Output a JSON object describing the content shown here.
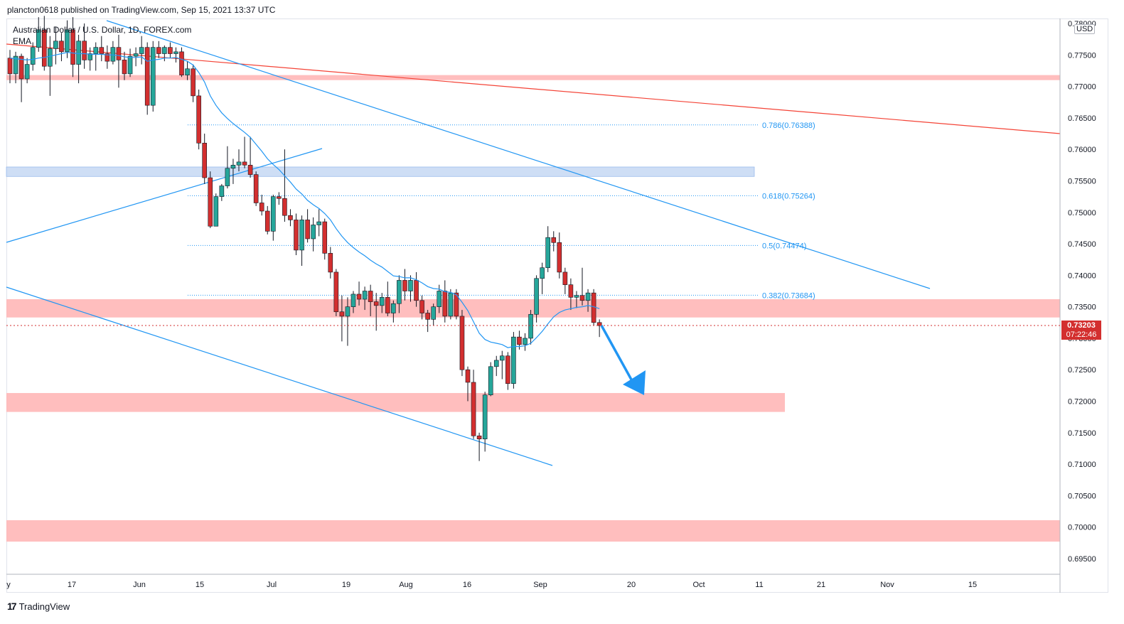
{
  "header": {
    "published": "plancton0618 published on TradingView.com, Sep 15, 2021 13:37 UTC"
  },
  "legend": {
    "symbol": "Australian Dollar / U.S. Dollar, 1D, FOREX.com",
    "indicator": "EMA"
  },
  "currency_badge": "USD",
  "last_price": {
    "price": "0.73203",
    "countdown": "07:22:46"
  },
  "footer": {
    "logo_mark": "17",
    "brand": "TradingView"
  },
  "colors": {
    "up": "#26a69a",
    "down": "#d32f2f",
    "candle_border": "#131722",
    "ema": "#2196f3",
    "trendline_blue": "#2196f3",
    "trendline_red": "#f44336",
    "zone_red": "#ffb3b3",
    "zone_blue": "#c9dbf5",
    "fib": "#2196f3",
    "arrow": "#2196f3"
  },
  "chart_data": {
    "type": "candlestick",
    "y_axis": {
      "range": [
        0.6935,
        0.7805
      ],
      "ticks": [
        "0.78000",
        "0.77500",
        "0.77000",
        "0.76500",
        "0.76000",
        "0.75500",
        "0.75000",
        "0.74500",
        "0.74000",
        "0.73500",
        "0.73000",
        "0.72500",
        "0.72000",
        "0.71500",
        "0.71000",
        "0.70500",
        "0.70000",
        "0.69500"
      ]
    },
    "x_axis": {
      "ticks": [
        "y",
        "17",
        "Jun",
        "15",
        "Jul",
        "19",
        "Aug",
        "16",
        "Sep",
        "20",
        "Oct",
        "11",
        "21",
        "Nov",
        "15"
      ]
    },
    "candles": [
      [
        0.7745,
        0.7758,
        0.7705,
        0.772
      ],
      [
        0.772,
        0.7755,
        0.7705,
        0.7748
      ],
      [
        0.7748,
        0.7752,
        0.7675,
        0.7712
      ],
      [
        0.7712,
        0.7745,
        0.7705,
        0.7735
      ],
      [
        0.7735,
        0.777,
        0.7725,
        0.7762
      ],
      [
        0.7762,
        0.781,
        0.7755,
        0.779
      ],
      [
        0.779,
        0.7812,
        0.7725,
        0.7732
      ],
      [
        0.7732,
        0.778,
        0.7685,
        0.776
      ],
      [
        0.776,
        0.7795,
        0.7735,
        0.7772
      ],
      [
        0.7772,
        0.7785,
        0.774,
        0.7755
      ],
      [
        0.7755,
        0.7805,
        0.7745,
        0.779
      ],
      [
        0.779,
        0.781,
        0.7715,
        0.7735
      ],
      [
        0.7735,
        0.7782,
        0.7705,
        0.7772
      ],
      [
        0.7772,
        0.78,
        0.7728,
        0.7742
      ],
      [
        0.7742,
        0.7762,
        0.7725,
        0.7752
      ],
      [
        0.7752,
        0.777,
        0.7725,
        0.7762
      ],
      [
        0.7762,
        0.778,
        0.774,
        0.7752
      ],
      [
        0.7752,
        0.7765,
        0.7728,
        0.774
      ],
      [
        0.774,
        0.7772,
        0.7735,
        0.7762
      ],
      [
        0.7762,
        0.7782,
        0.7698,
        0.7742
      ],
      [
        0.7742,
        0.7755,
        0.771,
        0.772
      ],
      [
        0.772,
        0.776,
        0.7715,
        0.7748
      ],
      [
        0.7748,
        0.7762,
        0.7732,
        0.7752
      ],
      [
        0.7752,
        0.778,
        0.7735,
        0.7762
      ],
      [
        0.7762,
        0.777,
        0.7655,
        0.767
      ],
      [
        0.767,
        0.7772,
        0.766,
        0.7762
      ],
      [
        0.7762,
        0.7772,
        0.7745,
        0.7752
      ],
      [
        0.7752,
        0.7765,
        0.774,
        0.7762
      ],
      [
        0.7762,
        0.777,
        0.7745,
        0.7752
      ],
      [
        0.7752,
        0.7762,
        0.7738,
        0.7755
      ],
      [
        0.7755,
        0.7762,
        0.7715,
        0.7718
      ],
      [
        0.7718,
        0.774,
        0.771,
        0.7728
      ],
      [
        0.7728,
        0.7735,
        0.7675,
        0.7685
      ],
      [
        0.7685,
        0.7695,
        0.76,
        0.761
      ],
      [
        0.761,
        0.7625,
        0.7545,
        0.7555
      ],
      [
        0.7555,
        0.7565,
        0.7475,
        0.7478
      ],
      [
        0.7478,
        0.753,
        0.7478,
        0.7525
      ],
      [
        0.7525,
        0.7545,
        0.7518,
        0.7542
      ],
      [
        0.7542,
        0.7605,
        0.7538,
        0.757
      ],
      [
        0.757,
        0.7585,
        0.7545,
        0.7575
      ],
      [
        0.7575,
        0.76,
        0.7565,
        0.758
      ],
      [
        0.758,
        0.762,
        0.757,
        0.7575
      ],
      [
        0.7575,
        0.762,
        0.7555,
        0.756
      ],
      [
        0.756,
        0.7565,
        0.751,
        0.7515
      ],
      [
        0.7515,
        0.7528,
        0.7495,
        0.7502
      ],
      [
        0.7502,
        0.751,
        0.7465,
        0.747
      ],
      [
        0.747,
        0.7528,
        0.7455,
        0.7525
      ],
      [
        0.7525,
        0.7532,
        0.7512,
        0.7522
      ],
      [
        0.7522,
        0.76,
        0.7485,
        0.7495
      ],
      [
        0.7495,
        0.7505,
        0.7478,
        0.7488
      ],
      [
        0.7488,
        0.7498,
        0.7432,
        0.744
      ],
      [
        0.744,
        0.7495,
        0.7415,
        0.7488
      ],
      [
        0.7488,
        0.7505,
        0.7452,
        0.7458
      ],
      [
        0.7458,
        0.7492,
        0.7438,
        0.748
      ],
      [
        0.748,
        0.7505,
        0.7462,
        0.7485
      ],
      [
        0.7485,
        0.749,
        0.7425,
        0.7435
      ],
      [
        0.7435,
        0.7445,
        0.7395,
        0.7405
      ],
      [
        0.7405,
        0.741,
        0.7335,
        0.7342
      ],
      [
        0.7342,
        0.7368,
        0.7295,
        0.7335
      ],
      [
        0.7335,
        0.7365,
        0.7288,
        0.735
      ],
      [
        0.735,
        0.7375,
        0.734,
        0.737
      ],
      [
        0.737,
        0.739,
        0.7352,
        0.7362
      ],
      [
        0.7362,
        0.7382,
        0.7345,
        0.7375
      ],
      [
        0.7375,
        0.7385,
        0.7335,
        0.7358
      ],
      [
        0.7358,
        0.7372,
        0.7312,
        0.7352
      ],
      [
        0.7352,
        0.7372,
        0.734,
        0.7365
      ],
      [
        0.7365,
        0.739,
        0.7335,
        0.734
      ],
      [
        0.734,
        0.736,
        0.7325,
        0.7355
      ],
      [
        0.7355,
        0.74,
        0.734,
        0.7392
      ],
      [
        0.7392,
        0.741,
        0.736,
        0.7375
      ],
      [
        0.7375,
        0.74,
        0.7358,
        0.7392
      ],
      [
        0.7392,
        0.7405,
        0.735,
        0.736
      ],
      [
        0.736,
        0.7368,
        0.733,
        0.734
      ],
      [
        0.734,
        0.7345,
        0.731,
        0.733
      ],
      [
        0.733,
        0.7355,
        0.732,
        0.735
      ],
      [
        0.735,
        0.7385,
        0.734,
        0.7375
      ],
      [
        0.7375,
        0.7392,
        0.7325,
        0.7335
      ],
      [
        0.7335,
        0.7378,
        0.733,
        0.7372
      ],
      [
        0.7372,
        0.7378,
        0.733,
        0.7335
      ],
      [
        0.7335,
        0.7345,
        0.724,
        0.725
      ],
      [
        0.725,
        0.7255,
        0.72,
        0.723
      ],
      [
        0.723,
        0.725,
        0.714,
        0.7145
      ],
      [
        0.7145,
        0.715,
        0.7105,
        0.714
      ],
      [
        0.714,
        0.7215,
        0.712,
        0.721
      ],
      [
        0.721,
        0.7262,
        0.7208,
        0.7255
      ],
      [
        0.7255,
        0.7272,
        0.724,
        0.7265
      ],
      [
        0.7265,
        0.728,
        0.7235,
        0.7272
      ],
      [
        0.7272,
        0.7278,
        0.7218,
        0.7228
      ],
      [
        0.7228,
        0.731,
        0.722,
        0.7302
      ],
      [
        0.7302,
        0.7312,
        0.7282,
        0.729
      ],
      [
        0.729,
        0.7308,
        0.728,
        0.73
      ],
      [
        0.73,
        0.7345,
        0.729,
        0.7338
      ],
      [
        0.7338,
        0.74,
        0.7325,
        0.7395
      ],
      [
        0.7395,
        0.742,
        0.737,
        0.7412
      ],
      [
        0.7412,
        0.7478,
        0.7405,
        0.746
      ],
      [
        0.746,
        0.747,
        0.7438,
        0.7452
      ],
      [
        0.7452,
        0.7468,
        0.7395,
        0.7405
      ],
      [
        0.7405,
        0.7412,
        0.737,
        0.7385
      ],
      [
        0.7385,
        0.7395,
        0.7345,
        0.7365
      ],
      [
        0.7365,
        0.7375,
        0.7348,
        0.7368
      ],
      [
        0.7368,
        0.7412,
        0.7352,
        0.736
      ],
      [
        0.736,
        0.7378,
        0.7342,
        0.7372
      ],
      [
        0.7372,
        0.7378,
        0.732,
        0.7325
      ],
      [
        0.7325,
        0.733,
        0.7302,
        0.732
      ]
    ],
    "ema": [
      0.7745,
      0.7744,
      0.7743,
      0.7742,
      0.7743,
      0.7745,
      0.7746,
      0.7748,
      0.775,
      0.7752,
      0.7754,
      0.7753,
      0.7752,
      0.7752,
      0.7751,
      0.7751,
      0.7751,
      0.775,
      0.775,
      0.7749,
      0.7747,
      0.7746,
      0.7746,
      0.7747,
      0.774,
      0.7742,
      0.7743,
      0.7745,
      0.7745,
      0.7746,
      0.7743,
      0.774,
      0.7734,
      0.7722,
      0.7707,
      0.7685,
      0.767,
      0.7658,
      0.7649,
      0.7641,
      0.7634,
      0.7627,
      0.7619,
      0.7608,
      0.7597,
      0.7585,
      0.7576,
      0.7568,
      0.7558,
      0.7548,
      0.7537,
      0.7529,
      0.7519,
      0.7512,
      0.7506,
      0.7498,
      0.7488,
      0.7474,
      0.7462,
      0.7452,
      0.7444,
      0.7437,
      0.7431,
      0.7424,
      0.7418,
      0.7413,
      0.7406,
      0.7399,
      0.7398,
      0.7396,
      0.7396,
      0.7393,
      0.7388,
      0.7382,
      0.7379,
      0.7378,
      0.7374,
      0.7373,
      0.7369,
      0.7357,
      0.7344,
      0.7326,
      0.7308,
      0.7298,
      0.7294,
      0.7292,
      0.729,
      0.7285,
      0.7287,
      0.7287,
      0.7288,
      0.7292,
      0.7301,
      0.7311,
      0.7323,
      0.7334,
      0.7341,
      0.7345,
      0.7347,
      0.7349,
      0.735,
      0.7352,
      0.735,
      0.7347
    ],
    "fibonacci": [
      {
        "label": "0.786(0.76388)",
        "value": 0.76388
      },
      {
        "label": "0.618(0.75264)",
        "value": 0.75264
      },
      {
        "label": "0.5(0.74474)",
        "value": 0.74474
      },
      {
        "label": "0.382(0.73684)",
        "value": 0.73684
      }
    ],
    "zones": [
      {
        "color": "red",
        "low": 0.771,
        "high": 0.7718
      },
      {
        "color": "blue",
        "low": 0.7557,
        "high": 0.7572
      },
      {
        "color": "red",
        "low": 0.7333,
        "high": 0.7362
      },
      {
        "color": "red",
        "low": 0.7183,
        "high": 0.7213
      },
      {
        "color": "red",
        "low": 0.6977,
        "high": 0.7011
      }
    ]
  }
}
